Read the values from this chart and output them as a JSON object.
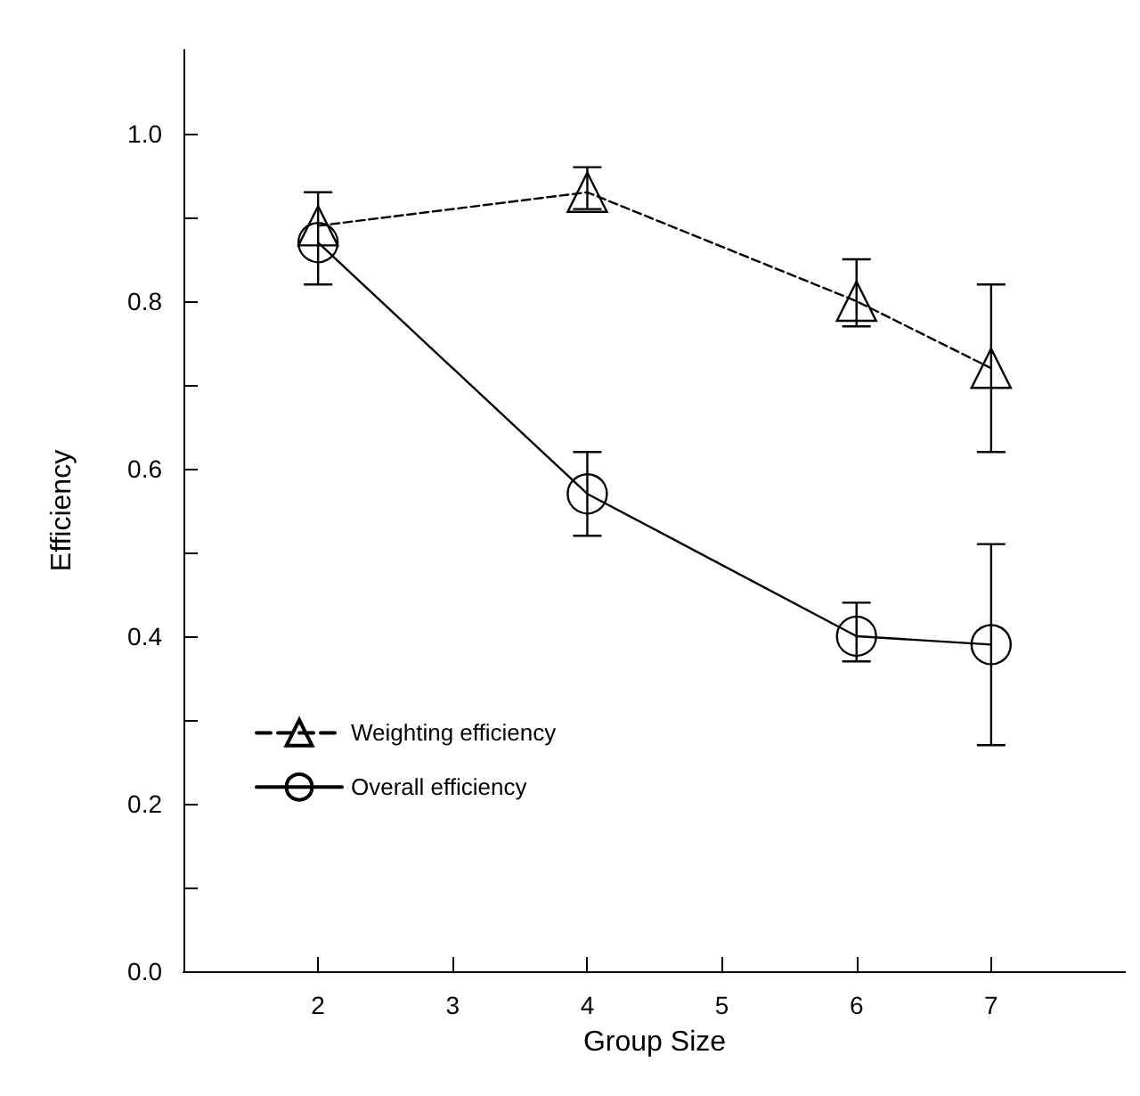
{
  "chart_data": {
    "type": "line",
    "xlabel": "Group Size",
    "ylabel": "Efficiency",
    "x": [
      2,
      4,
      6,
      7
    ],
    "series": [
      {
        "name": "Weighting efficiency",
        "color": "#000000",
        "values": [
          0.89,
          0.93,
          0.8,
          0.72
        ],
        "errors": [
          [
            0.82,
            0.93
          ],
          [
            0.91,
            0.96
          ],
          [
            0.77,
            0.85
          ],
          [
            0.62,
            0.82
          ]
        ],
        "marker": "triangle",
        "line_style": "dashed"
      },
      {
        "name": "Overall efficiency",
        "color": "#000000",
        "values": [
          0.87,
          0.57,
          0.4,
          0.39
        ],
        "errors": [
          null,
          [
            0.52,
            0.62
          ],
          [
            0.37,
            0.44
          ],
          [
            0.27,
            0.51
          ]
        ],
        "marker": "circle",
        "line_style": "solid"
      }
    ],
    "xlim": [
      1,
      8
    ],
    "xticks": [
      2,
      3,
      4,
      5,
      6,
      7
    ],
    "ylim": [
      0,
      1.1
    ],
    "yticks": [
      {
        "value": 0,
        "label": "0.0"
      },
      {
        "value": 0.1,
        "label": null
      },
      0.2,
      {
        "value": 0.3,
        "label": null
      },
      0.4,
      {
        "value": 0.5,
        "label": null
      },
      0.6,
      {
        "value": 0.7,
        "label": null
      },
      0.8,
      {
        "value": 0.9,
        "label": null
      },
      {
        "value": 1,
        "label": "1.0"
      }
    ],
    "grid": false,
    "legend": "left"
  }
}
